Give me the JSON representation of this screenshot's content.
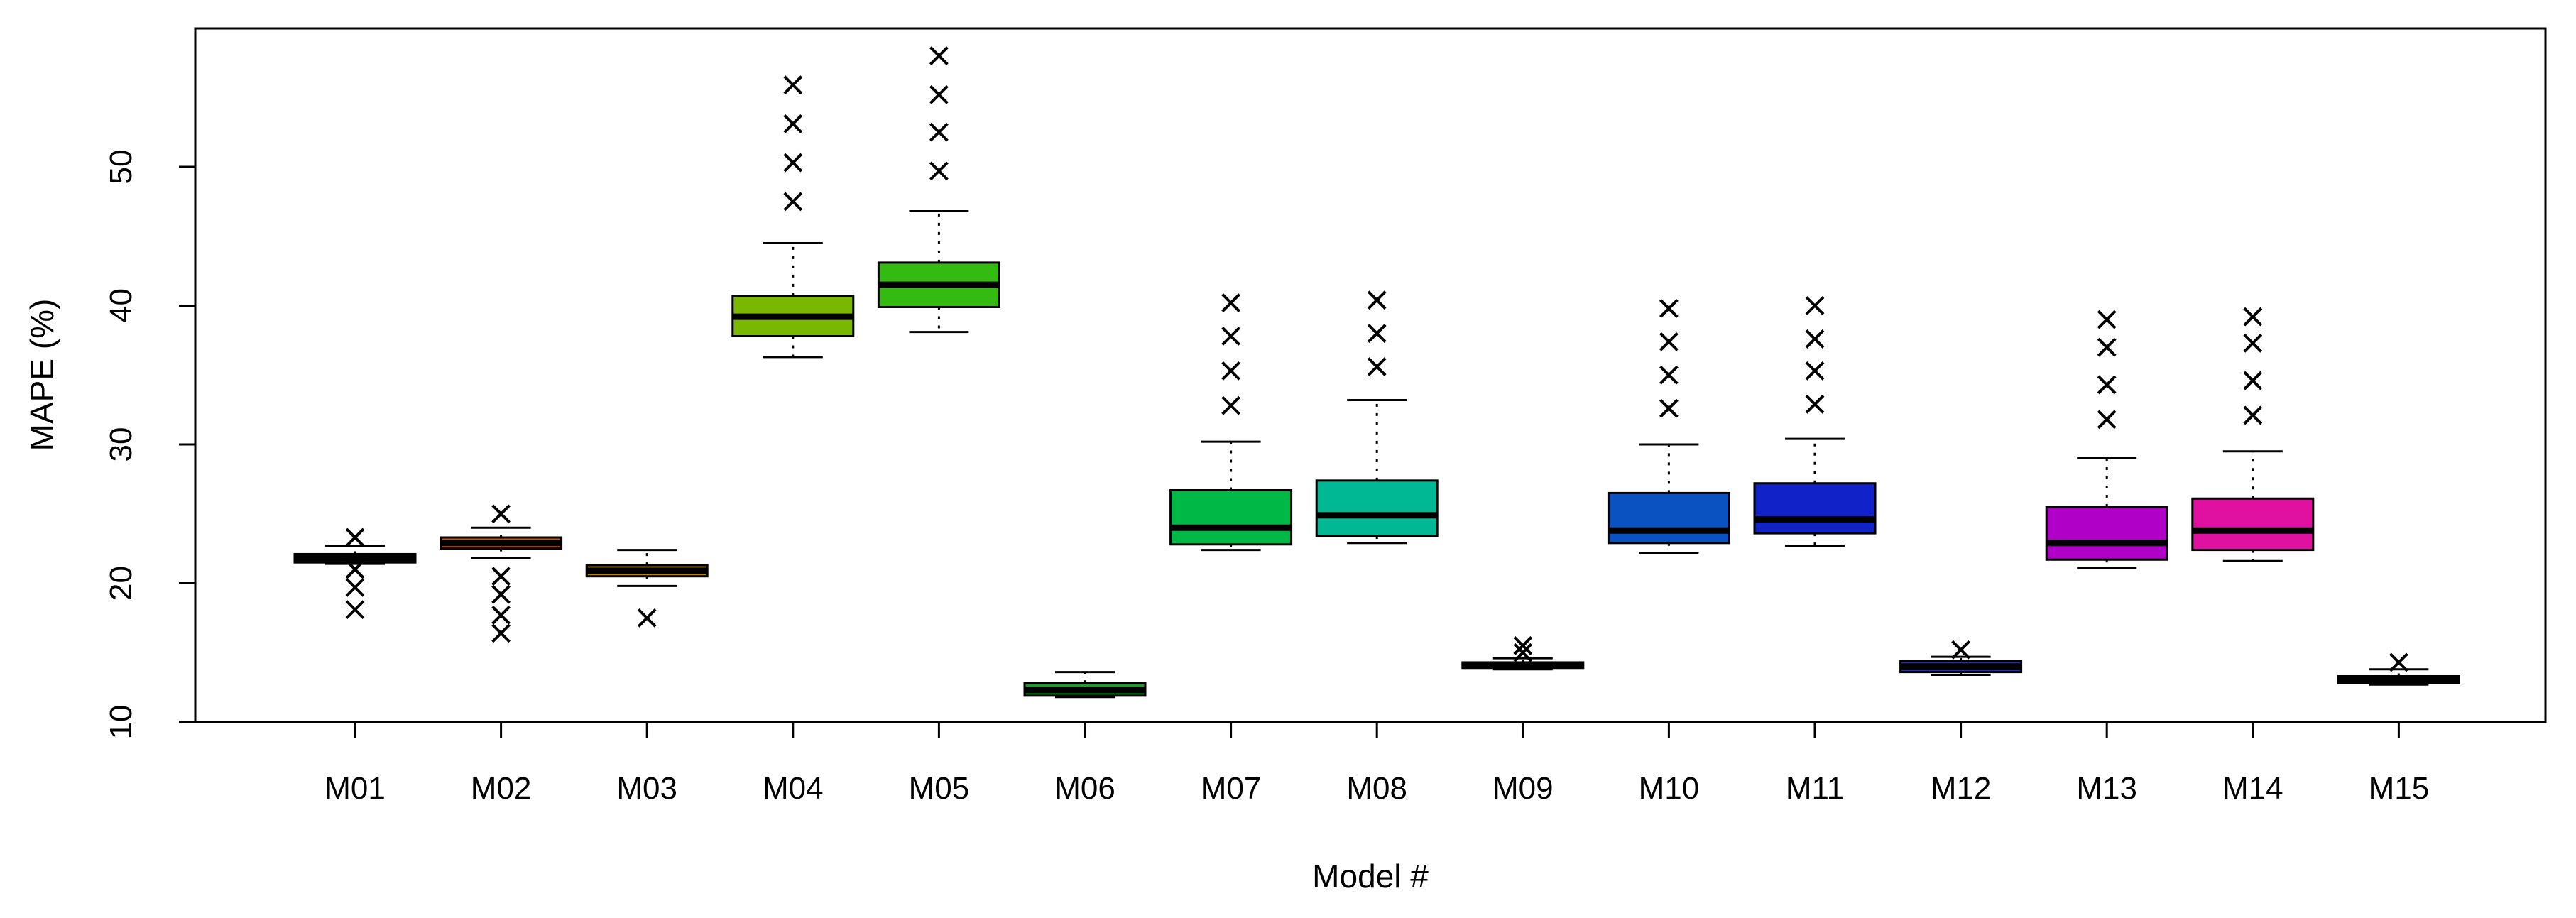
{
  "chart_data": {
    "type": "boxplot",
    "title": "",
    "xlabel": "Model #",
    "ylabel": "MAPE (%)",
    "ylim": [
      10,
      60
    ],
    "yticks": [
      10,
      20,
      30,
      40,
      50
    ],
    "grid": false,
    "outlier_marker": "×",
    "categories": [
      "M01",
      "M02",
      "M03",
      "M04",
      "M05",
      "M06",
      "M07",
      "M08",
      "M09",
      "M10",
      "M11",
      "M12",
      "M13",
      "M14",
      "M15"
    ],
    "boxes": [
      {
        "name": "M01",
        "color": "#c0392b",
        "whisker_low": 21.4,
        "q1": 21.5,
        "median": 21.8,
        "q3": 22.1,
        "whisker_high": 22.7,
        "outliers": [
          23.3,
          21.0,
          19.7,
          18.1
        ]
      },
      {
        "name": "M02",
        "color": "#d35400",
        "whisker_low": 21.8,
        "q1": 22.5,
        "median": 22.9,
        "q3": 23.3,
        "whisker_high": 24.0,
        "outliers": [
          25.0,
          20.5,
          19.2,
          17.7,
          16.4
        ]
      },
      {
        "name": "M03",
        "color": "#b8860b",
        "whisker_low": 19.8,
        "q1": 20.5,
        "median": 20.9,
        "q3": 21.3,
        "whisker_high": 22.4,
        "outliers": [
          17.5
        ]
      },
      {
        "name": "M04",
        "color": "#7ab800",
        "whisker_low": 36.3,
        "q1": 37.8,
        "median": 39.2,
        "q3": 40.7,
        "whisker_high": 44.5,
        "outliers": [
          47.5,
          50.3,
          53.1,
          55.9
        ]
      },
      {
        "name": "M05",
        "color": "#33bb11",
        "whisker_low": 38.1,
        "q1": 39.9,
        "median": 41.5,
        "q3": 43.1,
        "whisker_high": 46.8,
        "outliers": [
          49.7,
          52.5,
          55.2,
          58.0
        ]
      },
      {
        "name": "M06",
        "color": "#1e9c2e",
        "whisker_low": 11.8,
        "q1": 11.9,
        "median": 12.3,
        "q3": 12.8,
        "whisker_high": 13.6,
        "outliers": []
      },
      {
        "name": "M07",
        "color": "#00b846",
        "whisker_low": 22.4,
        "q1": 22.8,
        "median": 24.0,
        "q3": 26.7,
        "whisker_high": 30.2,
        "outliers": [
          32.8,
          35.3,
          37.8,
          40.2
        ]
      },
      {
        "name": "M08",
        "color": "#00b894",
        "whisker_low": 22.9,
        "q1": 23.4,
        "median": 24.9,
        "q3": 27.4,
        "whisker_high": 33.2,
        "outliers": [
          35.6,
          38.0,
          40.4
        ]
      },
      {
        "name": "M09",
        "color": "#0bb5b5",
        "whisker_low": 13.8,
        "q1": 13.9,
        "median": 14.1,
        "q3": 14.3,
        "whisker_high": 14.6,
        "outliers": [
          15.5,
          15.0
        ]
      },
      {
        "name": "M10",
        "color": "#0a52c2",
        "whisker_low": 22.2,
        "q1": 22.9,
        "median": 23.8,
        "q3": 26.5,
        "whisker_high": 30.0,
        "outliers": [
          32.6,
          35.0,
          37.4,
          39.8
        ]
      },
      {
        "name": "M11",
        "color": "#1022c8",
        "whisker_low": 22.7,
        "q1": 23.6,
        "median": 24.6,
        "q3": 27.2,
        "whisker_high": 30.4,
        "outliers": [
          32.9,
          35.3,
          37.6,
          40.0
        ]
      },
      {
        "name": "M12",
        "color": "#2a2fb0",
        "whisker_low": 13.4,
        "q1": 13.6,
        "median": 14.0,
        "q3": 14.4,
        "whisker_high": 14.7,
        "outliers": [
          15.2
        ]
      },
      {
        "name": "M13",
        "color": "#b000c8",
        "whisker_low": 21.1,
        "q1": 21.7,
        "median": 22.9,
        "q3": 25.5,
        "whisker_high": 29.0,
        "outliers": [
          31.8,
          34.3,
          37.0,
          39.0
        ]
      },
      {
        "name": "M14",
        "color": "#e010a0",
        "whisker_low": 21.6,
        "q1": 22.4,
        "median": 23.8,
        "q3": 26.1,
        "whisker_high": 29.5,
        "outliers": [
          32.1,
          34.6,
          37.3,
          39.2
        ]
      },
      {
        "name": "M15",
        "color": "#e0306a",
        "whisker_low": 12.7,
        "q1": 12.8,
        "median": 13.0,
        "q3": 13.3,
        "whisker_high": 13.8,
        "outliers": [
          14.3
        ]
      }
    ]
  }
}
